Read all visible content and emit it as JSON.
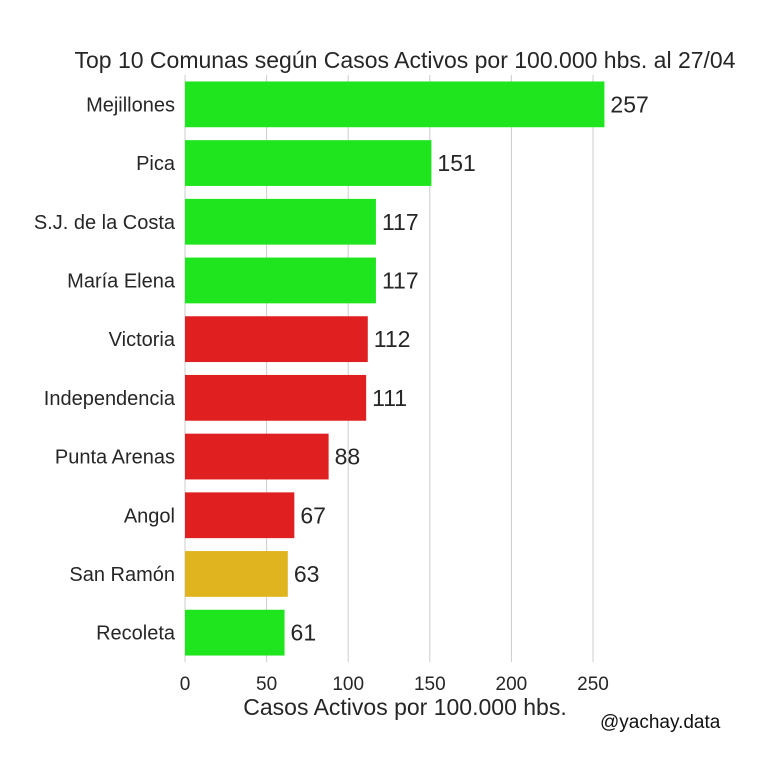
{
  "chart_data": {
    "type": "bar",
    "orientation": "horizontal",
    "title": "Top 10 Comunas según Casos Activos por 100.000 hbs. al 27/04",
    "xlabel": "Casos Activos por 100.000 hbs.",
    "ylabel": "",
    "categories": [
      "Mejillones",
      "Pica",
      "S.J. de la Costa",
      "María Elena",
      "Victoria",
      "Independencia",
      "Punta Arenas",
      "Angol",
      "San Ramón",
      "Recoleta"
    ],
    "values": [
      257,
      151,
      117,
      117,
      112,
      111,
      88,
      67,
      63,
      61
    ],
    "value_labels": [
      "257",
      "151",
      "117",
      "117",
      "112",
      "111",
      "88",
      "67",
      "63",
      "61"
    ],
    "bar_colors": [
      "#1fe51f",
      "#1fe51f",
      "#1fe51f",
      "#1fe51f",
      "#e02020",
      "#e02020",
      "#e02020",
      "#e02020",
      "#e0b41f",
      "#1fe51f"
    ],
    "xticks": [
      0,
      50,
      100,
      150,
      200,
      250
    ],
    "xlim": [
      0,
      270
    ],
    "grid": "vertical",
    "legend": "none"
  },
  "watermark": "@yachay.data"
}
